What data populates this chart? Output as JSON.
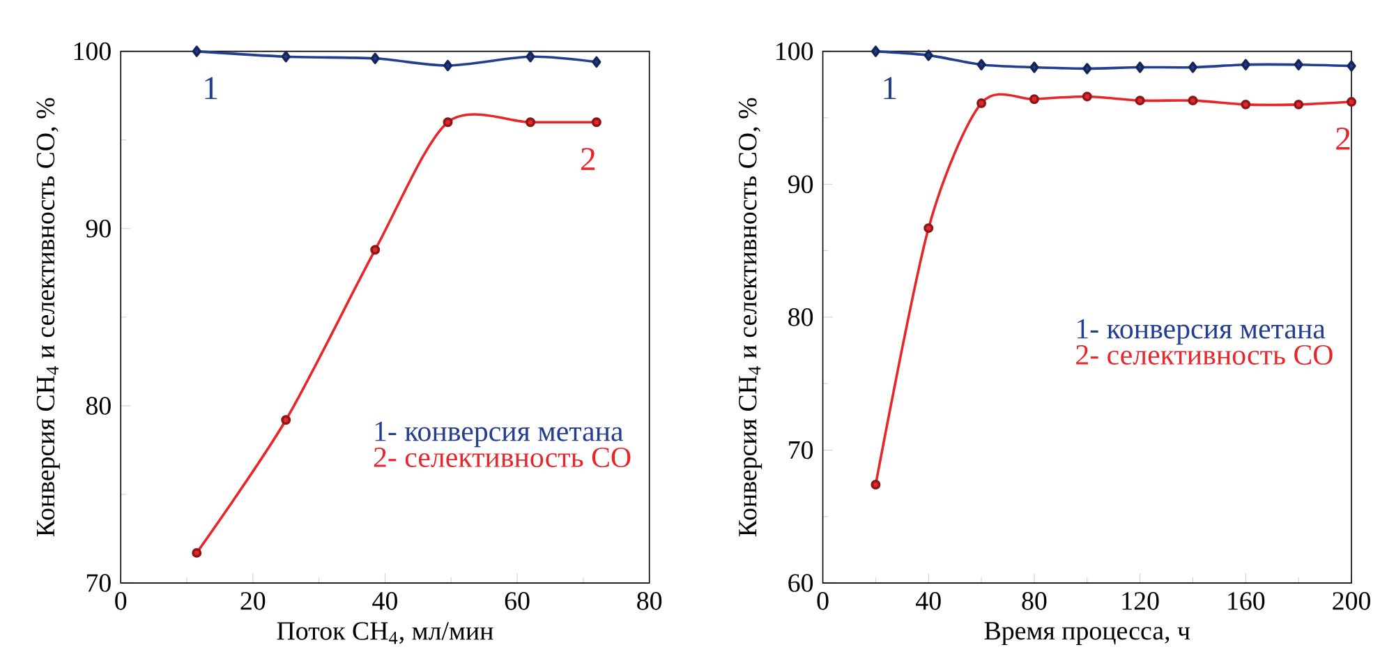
{
  "chart_data": [
    {
      "type": "line",
      "xlabel": "Поток CH$_{4}$, мл/мин",
      "ylabel": "Конверсия CH$_{4}$ и селективность CO, %",
      "xlim": [
        0,
        80
      ],
      "xticks": [
        0,
        20,
        40,
        60,
        80
      ],
      "ylim": [
        70,
        100
      ],
      "yticks": [
        70,
        80,
        90,
        100
      ],
      "legend": "bottom right",
      "marker": "circle",
      "line_style": "solid",
      "x": [
        11.5,
        25,
        38.5,
        49.5,
        62,
        72
      ],
      "series": [
        {
          "name": "1- конверсия метана",
          "color": "#233d91",
          "marker": "diamond",
          "values": [
            100,
            99.7,
            99.6,
            99.2,
            99.7,
            99.4
          ]
        },
        {
          "name": "2- селективность CO",
          "color": "#e8262a",
          "values": [
            71.7,
            79.2,
            88.8,
            96,
            96,
            96
          ]
        }
      ],
      "annotations": [
        "1",
        "2"
      ]
    },
    {
      "type": "line",
      "xlabel": "Время процесса, ч",
      "ylabel": "Конверсия CH$_{4}$ и селективность CO, %",
      "xlim": [
        0,
        200
      ],
      "xticks": [
        0,
        40,
        80,
        120,
        160,
        200
      ],
      "ylim": [
        60,
        100
      ],
      "yticks": [
        60,
        70,
        80,
        90,
        100
      ],
      "legend": "right",
      "marker": "circle",
      "line_style": "solid",
      "x": [
        20,
        40,
        60,
        80,
        100,
        120,
        140,
        160,
        180,
        200
      ],
      "series": [
        {
          "name": "1- конверсия метана",
          "color": "#233d91",
          "marker": "diamond",
          "values": [
            100,
            99.7,
            99.0,
            98.8,
            98.7,
            98.8,
            98.8,
            99.0,
            99.0,
            98.9
          ]
        },
        {
          "name": "2- селективность CO",
          "color": "#e8262a",
          "values": [
            67.4,
            86.7,
            96.1,
            96.4,
            96.6,
            96.3,
            96.3,
            96.0,
            96.0,
            96.2
          ]
        }
      ],
      "annotations": [
        "1",
        "2"
      ]
    }
  ]
}
